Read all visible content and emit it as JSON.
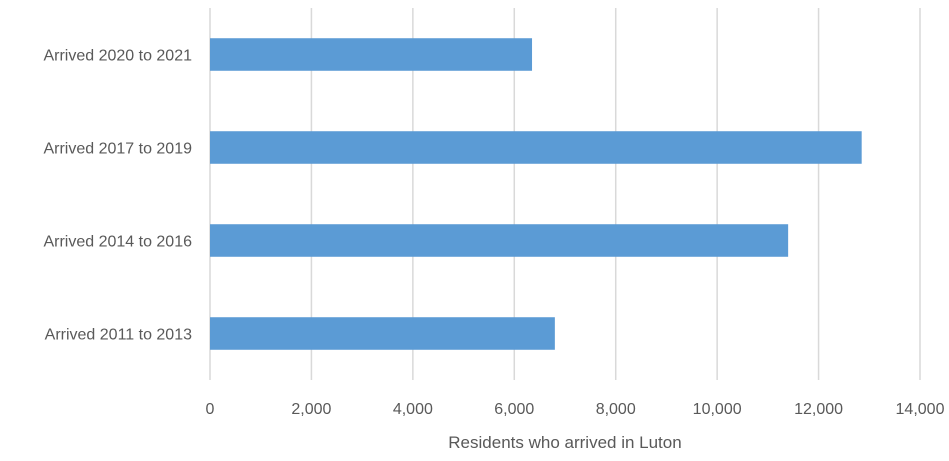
{
  "chart_data": {
    "type": "bar",
    "orientation": "horizontal",
    "categories": [
      "Arrived 2020 to 2021",
      "Arrived 2017 to 2019",
      "Arrived 2014 to 2016",
      "Arrived 2011 to 2013"
    ],
    "values": [
      6350,
      12850,
      11400,
      6800
    ],
    "title": "",
    "xlabel": "Residents who arrived in Luton",
    "ylabel": "",
    "xlim": [
      0,
      14000
    ],
    "xticks": [
      0,
      2000,
      4000,
      6000,
      8000,
      10000,
      12000,
      14000
    ],
    "xtick_labels": [
      "0",
      "2,000",
      "4,000",
      "6,000",
      "8,000",
      "10,000",
      "12,000",
      "14,000"
    ],
    "grid": "vertical",
    "legend": "none",
    "colors": {
      "bar": "#5B9BD5",
      "grid": "#D9D9D9",
      "text": "#595959"
    }
  }
}
